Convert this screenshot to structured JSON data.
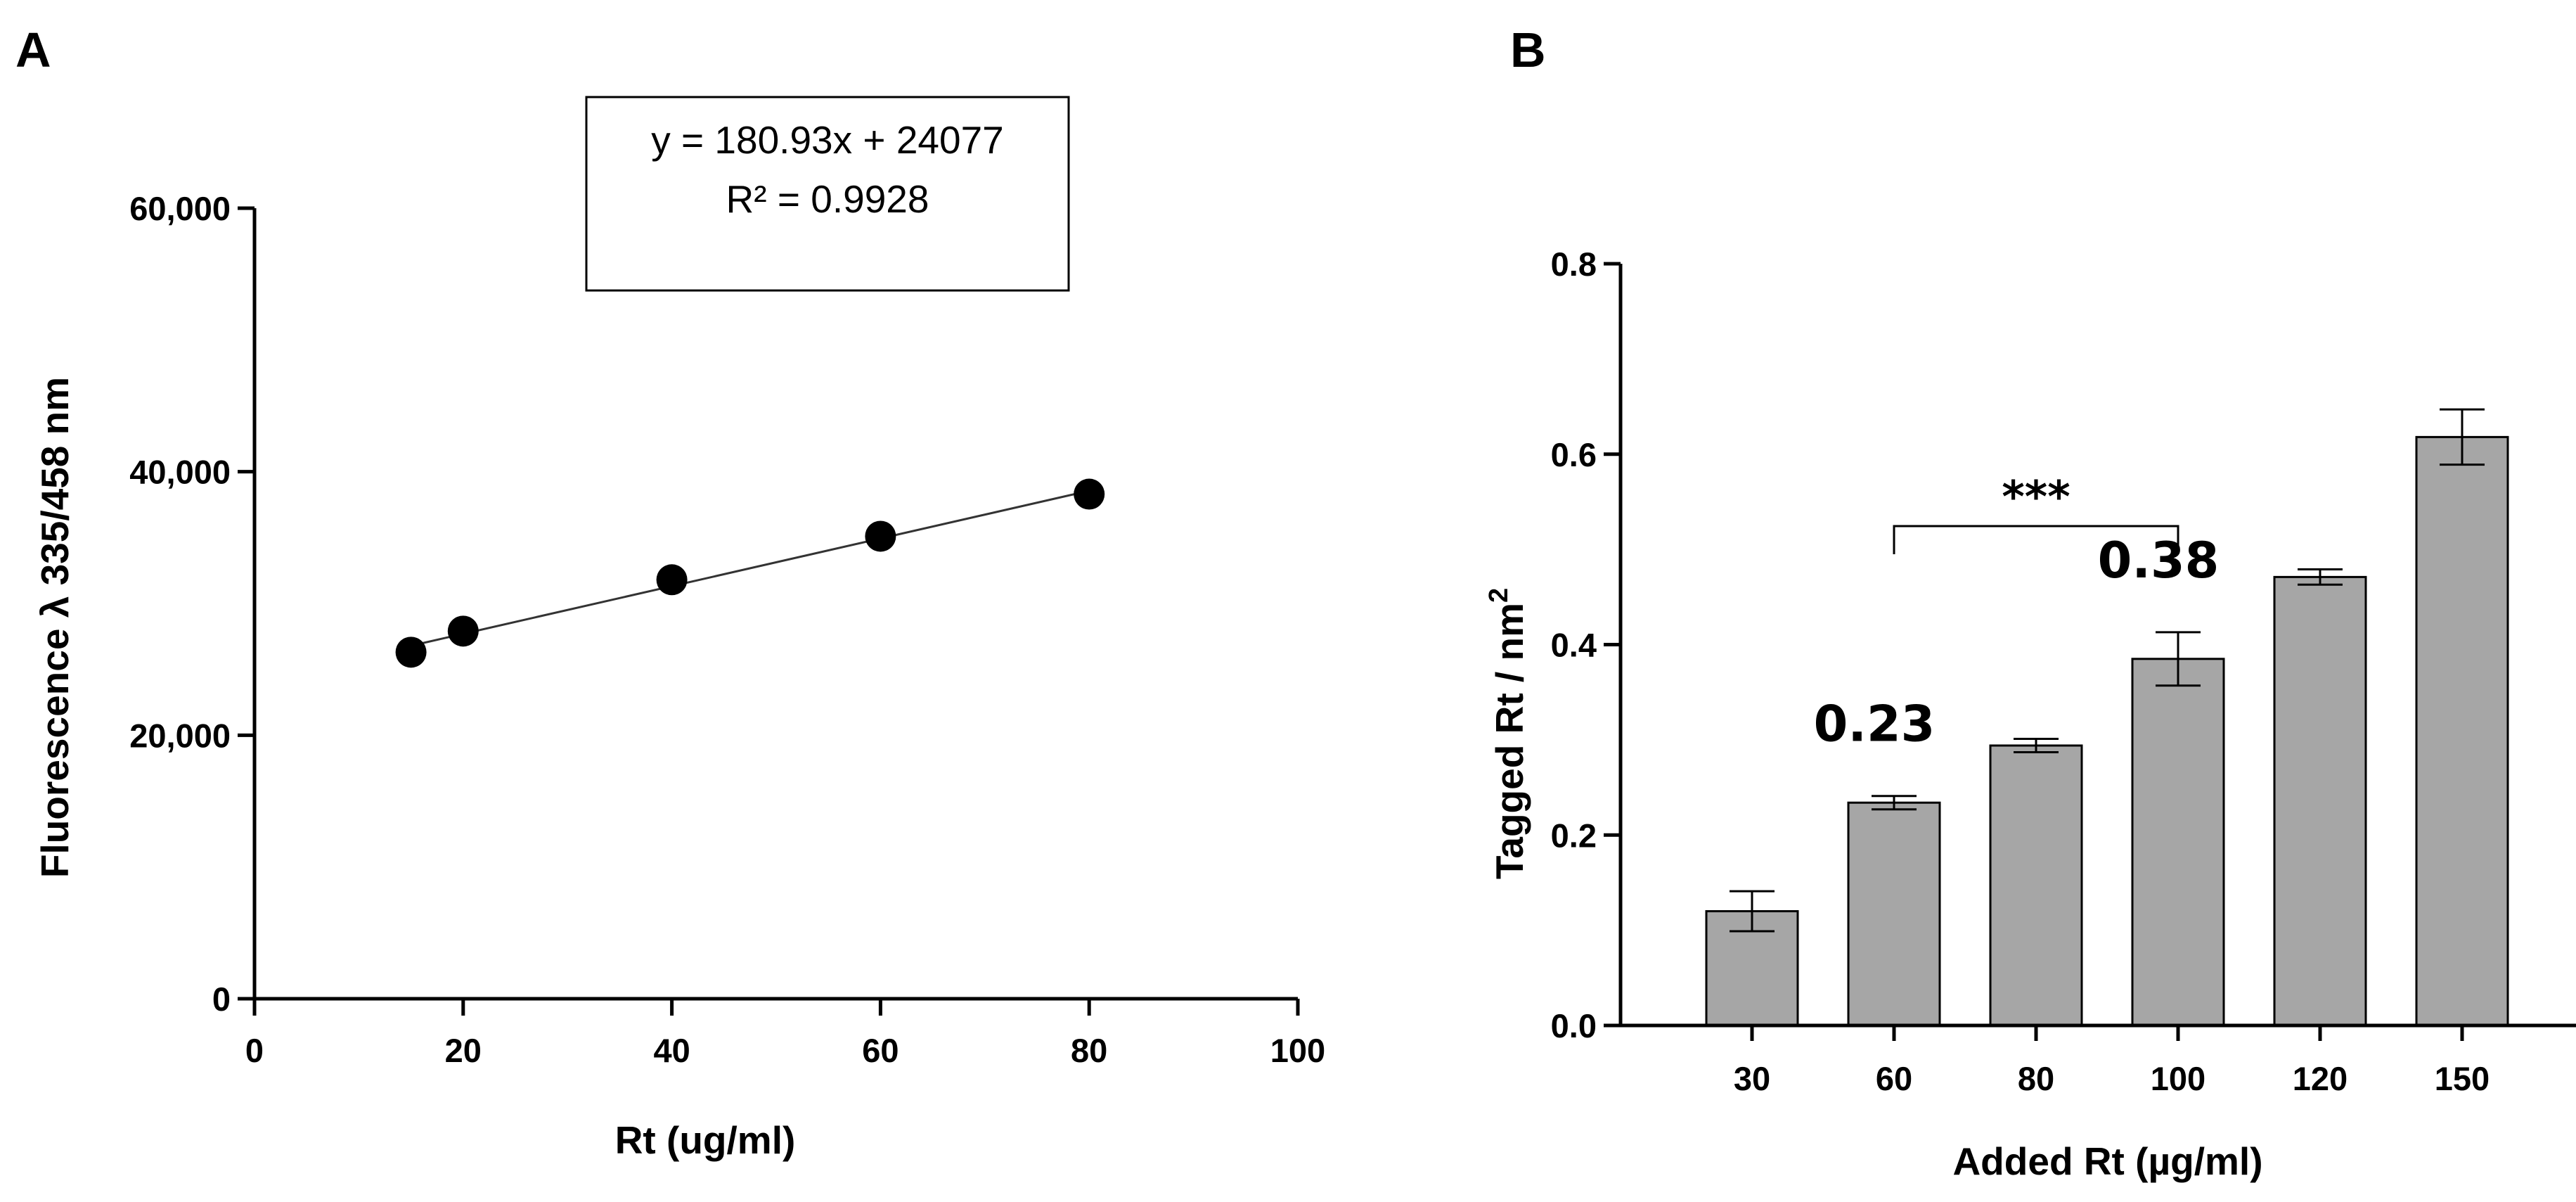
{
  "chart_data": [
    {
      "panel": "A",
      "type": "scatter",
      "xlabel": "Rt (ug/ml)",
      "ylabel": "Fluorescence λ 335/458 nm",
      "xlim": [
        0,
        100
      ],
      "ylim": [
        0,
        60000
      ],
      "x_ticks": [
        0,
        20,
        40,
        60,
        80,
        100
      ],
      "x_tick_labels": [
        "0",
        "20",
        "40",
        "60",
        "80",
        "100"
      ],
      "y_ticks": [
        0,
        20000,
        40000,
        60000
      ],
      "y_tick_labels": [
        "0",
        "20,000",
        "40,000",
        "60,000"
      ],
      "points": [
        {
          "x": 15,
          "y": 26300
        },
        {
          "x": 20,
          "y": 27900
        },
        {
          "x": 40,
          "y": 31800
        },
        {
          "x": 60,
          "y": 35100
        },
        {
          "x": 80,
          "y": 38300
        }
      ],
      "trendline": {
        "slope": 180.93,
        "intercept": 24077,
        "x_range": [
          15,
          80
        ]
      },
      "equation_text": "y = 180.93x + 24077",
      "r2_text": "R² = 0.9928",
      "grid": false
    },
    {
      "panel": "B",
      "type": "bar",
      "xlabel": "Added Rt (µg/ml)",
      "ylabel_main": "Tagged Rt / nm",
      "ylabel_sup": "2",
      "ylim": [
        0,
        0.8
      ],
      "y_ticks": [
        0,
        0.2,
        0.4,
        0.6,
        0.8
      ],
      "y_tick_labels": [
        "0.0",
        "0.2",
        "0.4",
        "0.6",
        "0.8"
      ],
      "categories": [
        "30",
        "60",
        "80",
        "100",
        "120",
        "150"
      ],
      "values": [
        0.12,
        0.234,
        0.294,
        0.385,
        0.471,
        0.618
      ],
      "errors": [
        0.021,
        0.007,
        0.007,
        0.028,
        0.008,
        0.029
      ],
      "bar_color": "#a6a6a6",
      "annotations": [
        {
          "category": "60",
          "text": "0.23"
        },
        {
          "category": "100",
          "text": "0.38"
        }
      ],
      "significance": {
        "from": "60",
        "to": "100",
        "text": "***"
      },
      "grid": false
    }
  ]
}
